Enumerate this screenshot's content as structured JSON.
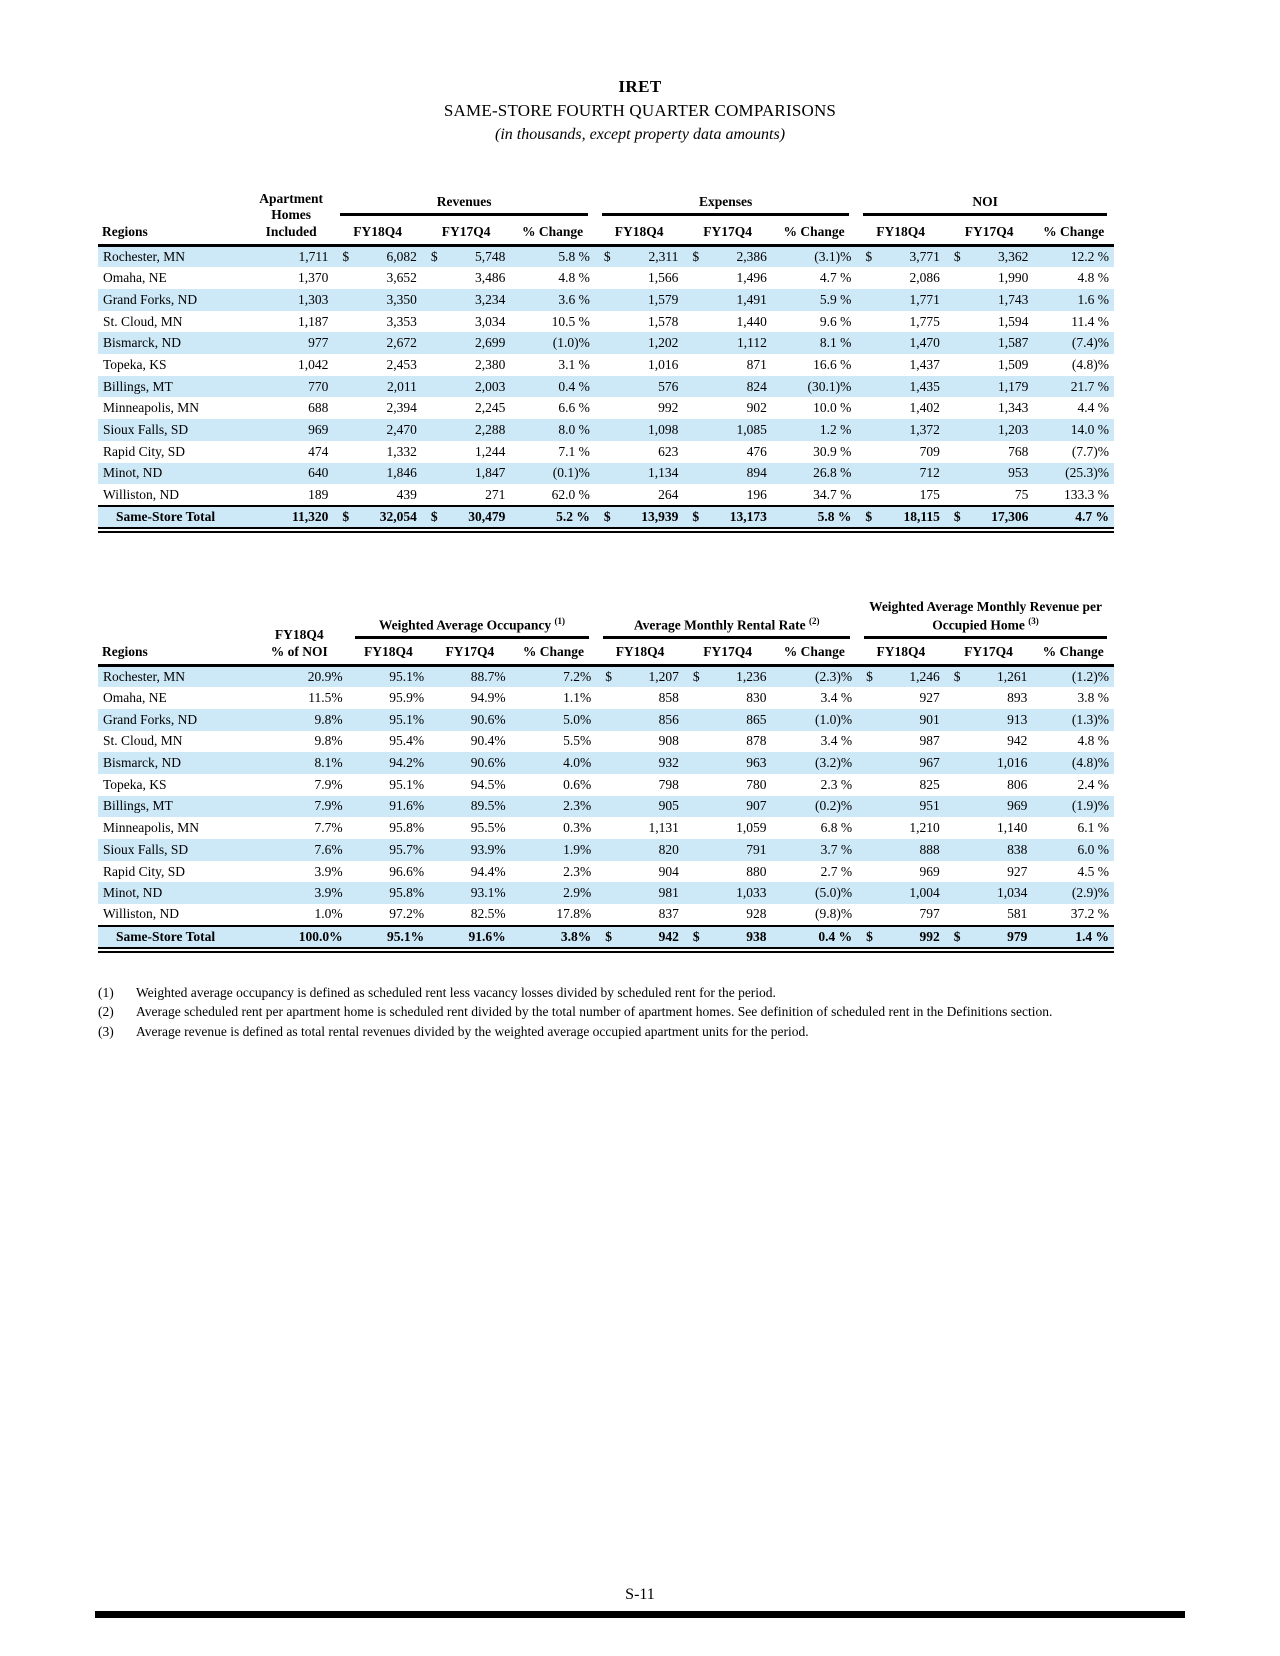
{
  "title": {
    "company": "IRET",
    "subtitle": "SAME-STORE FOURTH QUARTER COMPARISONS",
    "note": "(in thousands, except property data amounts)"
  },
  "colors": {
    "stripe": "#cde8f7",
    "rule": "#000000"
  },
  "table1": {
    "regions_label": "Regions",
    "homes_header": "Apartment Homes Included",
    "groups": [
      "Revenues",
      "Expenses",
      "NOI"
    ],
    "sub_headers": [
      "FY18Q4",
      "FY17Q4",
      "% Change"
    ],
    "rows": [
      [
        "Rochester, MN",
        "1,711",
        "$",
        "6,082",
        "$",
        "5,748",
        "5.8 %",
        "$",
        "2,311",
        "$",
        "2,386",
        "(3.1)%",
        "$",
        "3,771",
        "$",
        "3,362",
        "12.2 %"
      ],
      [
        "Omaha, NE",
        "1,370",
        "",
        "3,652",
        "",
        "3,486",
        "4.8 %",
        "",
        "1,566",
        "",
        "1,496",
        "4.7 %",
        "",
        "2,086",
        "",
        "1,990",
        "4.8 %"
      ],
      [
        "Grand Forks, ND",
        "1,303",
        "",
        "3,350",
        "",
        "3,234",
        "3.6 %",
        "",
        "1,579",
        "",
        "1,491",
        "5.9 %",
        "",
        "1,771",
        "",
        "1,743",
        "1.6 %"
      ],
      [
        "St. Cloud, MN",
        "1,187",
        "",
        "3,353",
        "",
        "3,034",
        "10.5 %",
        "",
        "1,578",
        "",
        "1,440",
        "9.6 %",
        "",
        "1,775",
        "",
        "1,594",
        "11.4 %"
      ],
      [
        "Bismarck, ND",
        "977",
        "",
        "2,672",
        "",
        "2,699",
        "(1.0)%",
        "",
        "1,202",
        "",
        "1,112",
        "8.1 %",
        "",
        "1,470",
        "",
        "1,587",
        "(7.4)%"
      ],
      [
        "Topeka, KS",
        "1,042",
        "",
        "2,453",
        "",
        "2,380",
        "3.1 %",
        "",
        "1,016",
        "",
        "871",
        "16.6 %",
        "",
        "1,437",
        "",
        "1,509",
        "(4.8)%"
      ],
      [
        "Billings, MT",
        "770",
        "",
        "2,011",
        "",
        "2,003",
        "0.4 %",
        "",
        "576",
        "",
        "824",
        "(30.1)%",
        "",
        "1,435",
        "",
        "1,179",
        "21.7 %"
      ],
      [
        "Minneapolis, MN",
        "688",
        "",
        "2,394",
        "",
        "2,245",
        "6.6 %",
        "",
        "992",
        "",
        "902",
        "10.0 %",
        "",
        "1,402",
        "",
        "1,343",
        "4.4 %"
      ],
      [
        "Sioux Falls, SD",
        "969",
        "",
        "2,470",
        "",
        "2,288",
        "8.0 %",
        "",
        "1,098",
        "",
        "1,085",
        "1.2 %",
        "",
        "1,372",
        "",
        "1,203",
        "14.0 %"
      ],
      [
        "Rapid City, SD",
        "474",
        "",
        "1,332",
        "",
        "1,244",
        "7.1 %",
        "",
        "623",
        "",
        "476",
        "30.9 %",
        "",
        "709",
        "",
        "768",
        "(7.7)%"
      ],
      [
        "Minot, ND",
        "640",
        "",
        "1,846",
        "",
        "1,847",
        "(0.1)%",
        "",
        "1,134",
        "",
        "894",
        "26.8 %",
        "",
        "712",
        "",
        "953",
        "(25.3)%"
      ],
      [
        "Williston, ND",
        "189",
        "",
        "439",
        "",
        "271",
        "62.0 %",
        "",
        "264",
        "",
        "196",
        "34.7 %",
        "",
        "175",
        "",
        "75",
        "133.3 %"
      ]
    ],
    "total_rows": [
      [
        "Same-Store Total",
        "11,320",
        "$",
        "32,054",
        "$",
        "30,479",
        "5.2 %",
        "$",
        "13,939",
        "$",
        "13,173",
        "5.8 %",
        "$",
        "18,115",
        "$",
        "17,306",
        "4.7 %"
      ]
    ]
  },
  "table2": {
    "regions_label": "Regions",
    "noi_header_line1": "FY18Q4",
    "noi_header_line2": "% of NOI",
    "groups": [
      {
        "label": "Weighted Average Occupancy",
        "sup": "(1)"
      },
      {
        "label": "Average Monthly Rental Rate",
        "sup": "(2)"
      },
      {
        "label": "Weighted Average Monthly Revenue per Occupied Home",
        "sup": "(3)"
      }
    ],
    "sub_headers": [
      "FY18Q4",
      "FY17Q4",
      "% Change"
    ],
    "rows": [
      [
        "Rochester, MN",
        "20.9%",
        "95.1%",
        "88.7%",
        "7.2%",
        "$",
        "1,207",
        "$",
        "1,236",
        "(2.3)%",
        "$",
        "1,246",
        "$",
        "1,261",
        "(1.2)%"
      ],
      [
        "Omaha, NE",
        "11.5%",
        "95.9%",
        "94.9%",
        "1.1%",
        "",
        "858",
        "",
        "830",
        "3.4 %",
        "",
        "927",
        "",
        "893",
        "3.8 %"
      ],
      [
        "Grand Forks, ND",
        "9.8%",
        "95.1%",
        "90.6%",
        "5.0%",
        "",
        "856",
        "",
        "865",
        "(1.0)%",
        "",
        "901",
        "",
        "913",
        "(1.3)%"
      ],
      [
        "St. Cloud, MN",
        "9.8%",
        "95.4%",
        "90.4%",
        "5.5%",
        "",
        "908",
        "",
        "878",
        "3.4 %",
        "",
        "987",
        "",
        "942",
        "4.8 %"
      ],
      [
        "Bismarck, ND",
        "8.1%",
        "94.2%",
        "90.6%",
        "4.0%",
        "",
        "932",
        "",
        "963",
        "(3.2)%",
        "",
        "967",
        "",
        "1,016",
        "(4.8)%"
      ],
      [
        "Topeka, KS",
        "7.9%",
        "95.1%",
        "94.5%",
        "0.6%",
        "",
        "798",
        "",
        "780",
        "2.3 %",
        "",
        "825",
        "",
        "806",
        "2.4 %"
      ],
      [
        "Billings, MT",
        "7.9%",
        "91.6%",
        "89.5%",
        "2.3%",
        "",
        "905",
        "",
        "907",
        "(0.2)%",
        "",
        "951",
        "",
        "969",
        "(1.9)%"
      ],
      [
        "Minneapolis, MN",
        "7.7%",
        "95.8%",
        "95.5%",
        "0.3%",
        "",
        "1,131",
        "",
        "1,059",
        "6.8 %",
        "",
        "1,210",
        "",
        "1,140",
        "6.1 %"
      ],
      [
        "Sioux Falls, SD",
        "7.6%",
        "95.7%",
        "93.9%",
        "1.9%",
        "",
        "820",
        "",
        "791",
        "3.7 %",
        "",
        "888",
        "",
        "838",
        "6.0 %"
      ],
      [
        "Rapid City, SD",
        "3.9%",
        "96.6%",
        "94.4%",
        "2.3%",
        "",
        "904",
        "",
        "880",
        "2.7 %",
        "",
        "969",
        "",
        "927",
        "4.5 %"
      ],
      [
        "Minot, ND",
        "3.9%",
        "95.8%",
        "93.1%",
        "2.9%",
        "",
        "981",
        "",
        "1,033",
        "(5.0)%",
        "",
        "1,004",
        "",
        "1,034",
        "(2.9)%"
      ],
      [
        "Williston, ND",
        "1.0%",
        "97.2%",
        "82.5%",
        "17.8%",
        "",
        "837",
        "",
        "928",
        "(9.8)%",
        "",
        "797",
        "",
        "581",
        "37.2 %"
      ]
    ],
    "total_rows": [
      [
        "Same-Store Total",
        "100.0%",
        "95.1%",
        "91.6%",
        "3.8%",
        "$",
        "942",
        "$",
        "938",
        "0.4 %",
        "$",
        "992",
        "$",
        "979",
        "1.4 %"
      ]
    ]
  },
  "footnotes": [
    {
      "marker": "(1)",
      "text": "Weighted average occupancy is defined as scheduled rent less vacancy losses divided by scheduled rent for the period."
    },
    {
      "marker": "(2)",
      "text": "Average scheduled rent per apartment home is scheduled rent divided by the total number of apartment homes.  See definition of scheduled rent in the Definitions section."
    },
    {
      "marker": "(3)",
      "text": "Average revenue is defined as total rental revenues divided by the weighted average occupied apartment units for the period."
    }
  ],
  "page_number": "S-11"
}
